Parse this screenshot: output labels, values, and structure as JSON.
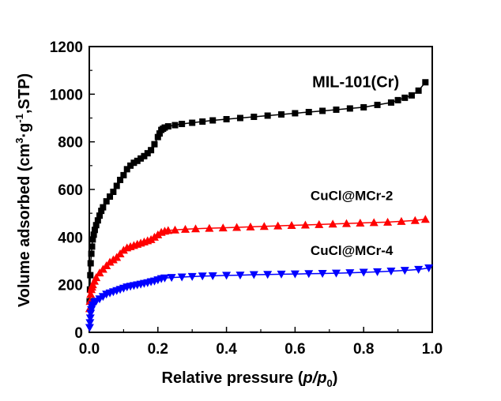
{
  "chart_data": {
    "type": "scatter",
    "xlabel_parts": [
      "Relative pressure (",
      "p",
      "/",
      "p",
      "0",
      ")"
    ],
    "ylabel_parts": [
      "Volume adsorbed (cm",
      "3",
      "·g",
      "-1",
      ",STP)"
    ],
    "xlim": [
      0.0,
      1.0
    ],
    "ylim": [
      0,
      1200
    ],
    "x_ticks": [
      "0.0",
      "0.2",
      "0.4",
      "0.6",
      "0.8",
      "1.0"
    ],
    "y_ticks": [
      "0",
      "200",
      "400",
      "600",
      "800",
      "1000",
      "1200"
    ],
    "grid": false,
    "series": [
      {
        "name": "MIL-101(Cr)",
        "marker": "square",
        "color": "#000000",
        "x": [
          0.001,
          0.002,
          0.003,
          0.004,
          0.006,
          0.008,
          0.01,
          0.013,
          0.016,
          0.02,
          0.025,
          0.03,
          0.035,
          0.04,
          0.05,
          0.06,
          0.07,
          0.08,
          0.09,
          0.1,
          0.11,
          0.12,
          0.13,
          0.14,
          0.15,
          0.16,
          0.17,
          0.18,
          0.19,
          0.2,
          0.205,
          0.21,
          0.215,
          0.22,
          0.23,
          0.25,
          0.27,
          0.3,
          0.33,
          0.36,
          0.4,
          0.44,
          0.48,
          0.52,
          0.56,
          0.6,
          0.64,
          0.68,
          0.72,
          0.76,
          0.8,
          0.84,
          0.88,
          0.9,
          0.92,
          0.94,
          0.96,
          0.98
        ],
        "y": [
          130,
          180,
          240,
          290,
          330,
          360,
          390,
          410,
          430,
          450,
          470,
          490,
          510,
          525,
          550,
          570,
          590,
          615,
          640,
          660,
          685,
          700,
          712,
          720,
          730,
          740,
          752,
          765,
          790,
          820,
          835,
          850,
          855,
          860,
          865,
          870,
          875,
          880,
          885,
          890,
          895,
          900,
          905,
          910,
          915,
          920,
          925,
          930,
          935,
          940,
          945,
          955,
          965,
          975,
          985,
          995,
          1015,
          1050
        ]
      },
      {
        "name": "CuCl@MCr-2",
        "marker": "triangle-up",
        "color": "#ff0000",
        "x": [
          0.001,
          0.002,
          0.004,
          0.006,
          0.008,
          0.01,
          0.015,
          0.02,
          0.03,
          0.04,
          0.05,
          0.06,
          0.07,
          0.08,
          0.09,
          0.1,
          0.11,
          0.12,
          0.13,
          0.14,
          0.15,
          0.16,
          0.17,
          0.18,
          0.19,
          0.2,
          0.21,
          0.22,
          0.23,
          0.25,
          0.28,
          0.31,
          0.35,
          0.39,
          0.43,
          0.47,
          0.51,
          0.55,
          0.59,
          0.63,
          0.67,
          0.71,
          0.75,
          0.79,
          0.83,
          0.87,
          0.91,
          0.95,
          0.98
        ],
        "y": [
          100,
          130,
          160,
          180,
          190,
          200,
          215,
          230,
          250,
          265,
          280,
          295,
          305,
          315,
          330,
          345,
          355,
          360,
          365,
          370,
          375,
          380,
          385,
          390,
          400,
          410,
          420,
          425,
          428,
          430,
          433,
          435,
          437,
          439,
          441,
          443,
          445,
          447,
          449,
          451,
          453,
          455,
          457,
          459,
          461,
          463,
          466,
          470,
          475
        ]
      },
      {
        "name": "CuCl@MCr-4",
        "marker": "triangle-down",
        "color": "#0000ff",
        "x": [
          0.001,
          0.002,
          0.003,
          0.004,
          0.006,
          0.008,
          0.01,
          0.015,
          0.02,
          0.03,
          0.04,
          0.05,
          0.06,
          0.07,
          0.08,
          0.09,
          0.1,
          0.11,
          0.12,
          0.13,
          0.14,
          0.15,
          0.16,
          0.17,
          0.18,
          0.19,
          0.2,
          0.21,
          0.22,
          0.24,
          0.27,
          0.3,
          0.33,
          0.36,
          0.4,
          0.44,
          0.48,
          0.52,
          0.56,
          0.6,
          0.64,
          0.68,
          0.72,
          0.76,
          0.8,
          0.84,
          0.88,
          0.92,
          0.96,
          0.99
        ],
        "y": [
          20,
          40,
          60,
          80,
          95,
          105,
          115,
          125,
          130,
          140,
          150,
          160,
          165,
          170,
          175,
          180,
          185,
          190,
          193,
          196,
          199,
          202,
          205,
          208,
          212,
          215,
          220,
          225,
          228,
          230,
          232,
          234,
          236,
          237,
          239,
          240,
          242,
          243,
          244,
          245,
          246,
          247,
          248,
          250,
          252,
          254,
          257,
          260,
          264,
          270
        ]
      }
    ],
    "annotations": [
      {
        "text": "MIL-101(Cr)",
        "x": 0.65,
        "y": 1030,
        "size": "large"
      },
      {
        "text": "CuCl@MCr-2",
        "x": 0.645,
        "y": 555,
        "size": "small"
      },
      {
        "text": "CuCl@MCr-4",
        "x": 0.645,
        "y": 325,
        "size": "small"
      }
    ]
  }
}
